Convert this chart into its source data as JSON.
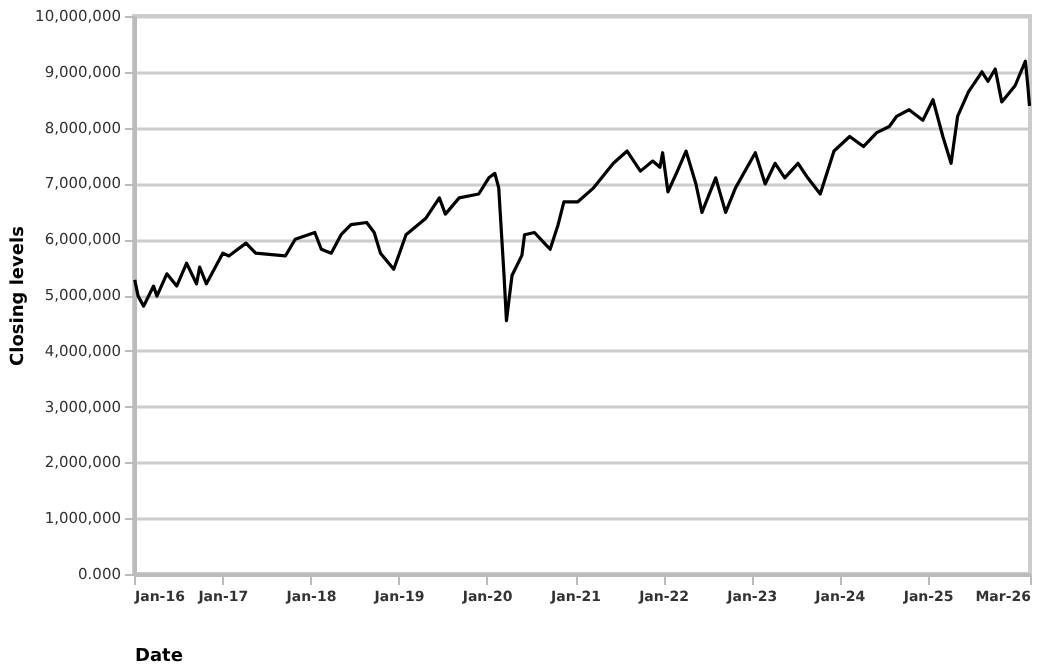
{
  "chart_data": {
    "type": "line",
    "xlabel": "Date",
    "ylabel": "Closing levels",
    "x": [
      "2016-01-04",
      "2016-01-18",
      "2016-02-10",
      "2016-03-22",
      "2016-04-05",
      "2016-05-16",
      "2016-06-26",
      "2016-08-06",
      "2016-09-16",
      "2016-09-29",
      "2016-10-27",
      "2017-01-03",
      "2017-01-28",
      "2017-04-09",
      "2017-05-19",
      "2017-09-19",
      "2017-10-30",
      "2018-01-19",
      "2018-02-15",
      "2018-03-28",
      "2018-05-08",
      "2018-06-18",
      "2018-08-22",
      "2018-09-22",
      "2018-10-18",
      "2018-12-12",
      "2019-02-01",
      "2019-04-23",
      "2019-06-19",
      "2019-07-14",
      "2019-09-09",
      "2019-11-29",
      "2020-01-10",
      "2020-02-04",
      "2020-02-20",
      "2020-03-13",
      "2020-03-23",
      "2020-04-15",
      "2020-05-26",
      "2020-06-06",
      "2020-07-17",
      "2020-08-27",
      "2020-09-20",
      "2020-10-23",
      "2020-11-16",
      "2021-01-13",
      "2021-03-19",
      "2021-06-09",
      "2021-08-05",
      "2021-09-29",
      "2021-11-19",
      "2021-12-19",
      "2021-12-30",
      "2022-01-21",
      "2022-02-25",
      "2022-04-06",
      "2022-05-17",
      "2022-06-11",
      "2022-08-07",
      "2022-09-17",
      "2022-10-28",
      "2023-01-18",
      "2023-02-28",
      "2023-04-10",
      "2023-05-20",
      "2023-07-14",
      "2023-08-23",
      "2023-10-14",
      "2023-12-10",
      "2024-02-13",
      "2024-04-10",
      "2024-06-04",
      "2024-07-26",
      "2024-08-25",
      "2024-10-16",
      "2024-12-12",
      "2025-01-23",
      "2025-03-05",
      "2025-04-08",
      "2025-05-05",
      "2025-06-19",
      "2025-08-14",
      "2025-09-08",
      "2025-10-08",
      "2025-11-04",
      "2025-12-29",
      "2026-02-10",
      "2026-02-20",
      "2026-02-27"
    ],
    "series": [
      {
        "color": "#000000",
        "values": [
          5270000,
          4980000,
          4800000,
          5160000,
          4980000,
          5380000,
          5160000,
          5570000,
          5200000,
          5500000,
          5200000,
          5750000,
          5700000,
          5930000,
          5750000,
          5700000,
          6000000,
          6120000,
          5820000,
          5750000,
          6080000,
          6260000,
          6300000,
          6120000,
          5750000,
          5460000,
          6080000,
          6370000,
          6740000,
          6450000,
          6740000,
          6810000,
          7100000,
          7180000,
          6920000,
          5350000,
          4540000,
          5350000,
          5710000,
          6080000,
          6120000,
          5930000,
          5820000,
          6260000,
          6670000,
          6670000,
          6920000,
          7360000,
          7580000,
          7220000,
          7400000,
          7290000,
          7550000,
          6850000,
          7180000,
          7580000,
          6990000,
          6480000,
          7100000,
          6480000,
          6920000,
          7550000,
          6990000,
          7360000,
          7100000,
          7360000,
          7100000,
          6810000,
          7580000,
          7840000,
          7660000,
          7910000,
          8020000,
          8200000,
          8320000,
          8130000,
          8500000,
          7840000,
          7360000,
          8200000,
          8640000,
          9000000,
          8830000,
          9050000,
          8460000,
          8750000,
          9190000,
          8750000,
          8390000
        ]
      }
    ],
    "xlim": [
      "2016-01-01",
      "2026-03-01"
    ],
    "xticks": [
      {
        "value": "2016-01-01",
        "label": "Jan-16"
      },
      {
        "value": "2017-01-01",
        "label": "Jan-17"
      },
      {
        "value": "2018-01-01",
        "label": "Jan-18"
      },
      {
        "value": "2019-01-01",
        "label": "Jan-19"
      },
      {
        "value": "2020-01-01",
        "label": "Jan-20"
      },
      {
        "value": "2021-01-01",
        "label": "Jan-21"
      },
      {
        "value": "2022-01-01",
        "label": "Jan-22"
      },
      {
        "value": "2023-01-01",
        "label": "Jan-23"
      },
      {
        "value": "2024-01-01",
        "label": "Jan-24"
      },
      {
        "value": "2025-01-01",
        "label": "Jan-25"
      },
      {
        "value": "2026-03-01",
        "label": "Mar-26"
      }
    ],
    "ylim": [
      0,
      10000000
    ],
    "yticks": [
      {
        "value": 0,
        "label": "0.000"
      },
      {
        "value": 1000000,
        "label": "1,000,000"
      },
      {
        "value": 2000000,
        "label": "2,000,000"
      },
      {
        "value": 3000000,
        "label": "3,000,000"
      },
      {
        "value": 4000000,
        "label": "4,000,000"
      },
      {
        "value": 5000000,
        "label": "5,000,000"
      },
      {
        "value": 6000000,
        "label": "6,000,000"
      },
      {
        "value": 7000000,
        "label": "7,000,000"
      },
      {
        "value": 8000000,
        "label": "8,000,000"
      },
      {
        "value": 9000000,
        "label": "9,000,000"
      },
      {
        "value": 10000000,
        "label": "10,000,000"
      }
    ],
    "grid": "y",
    "marker": "none",
    "line_style": "solid"
  }
}
